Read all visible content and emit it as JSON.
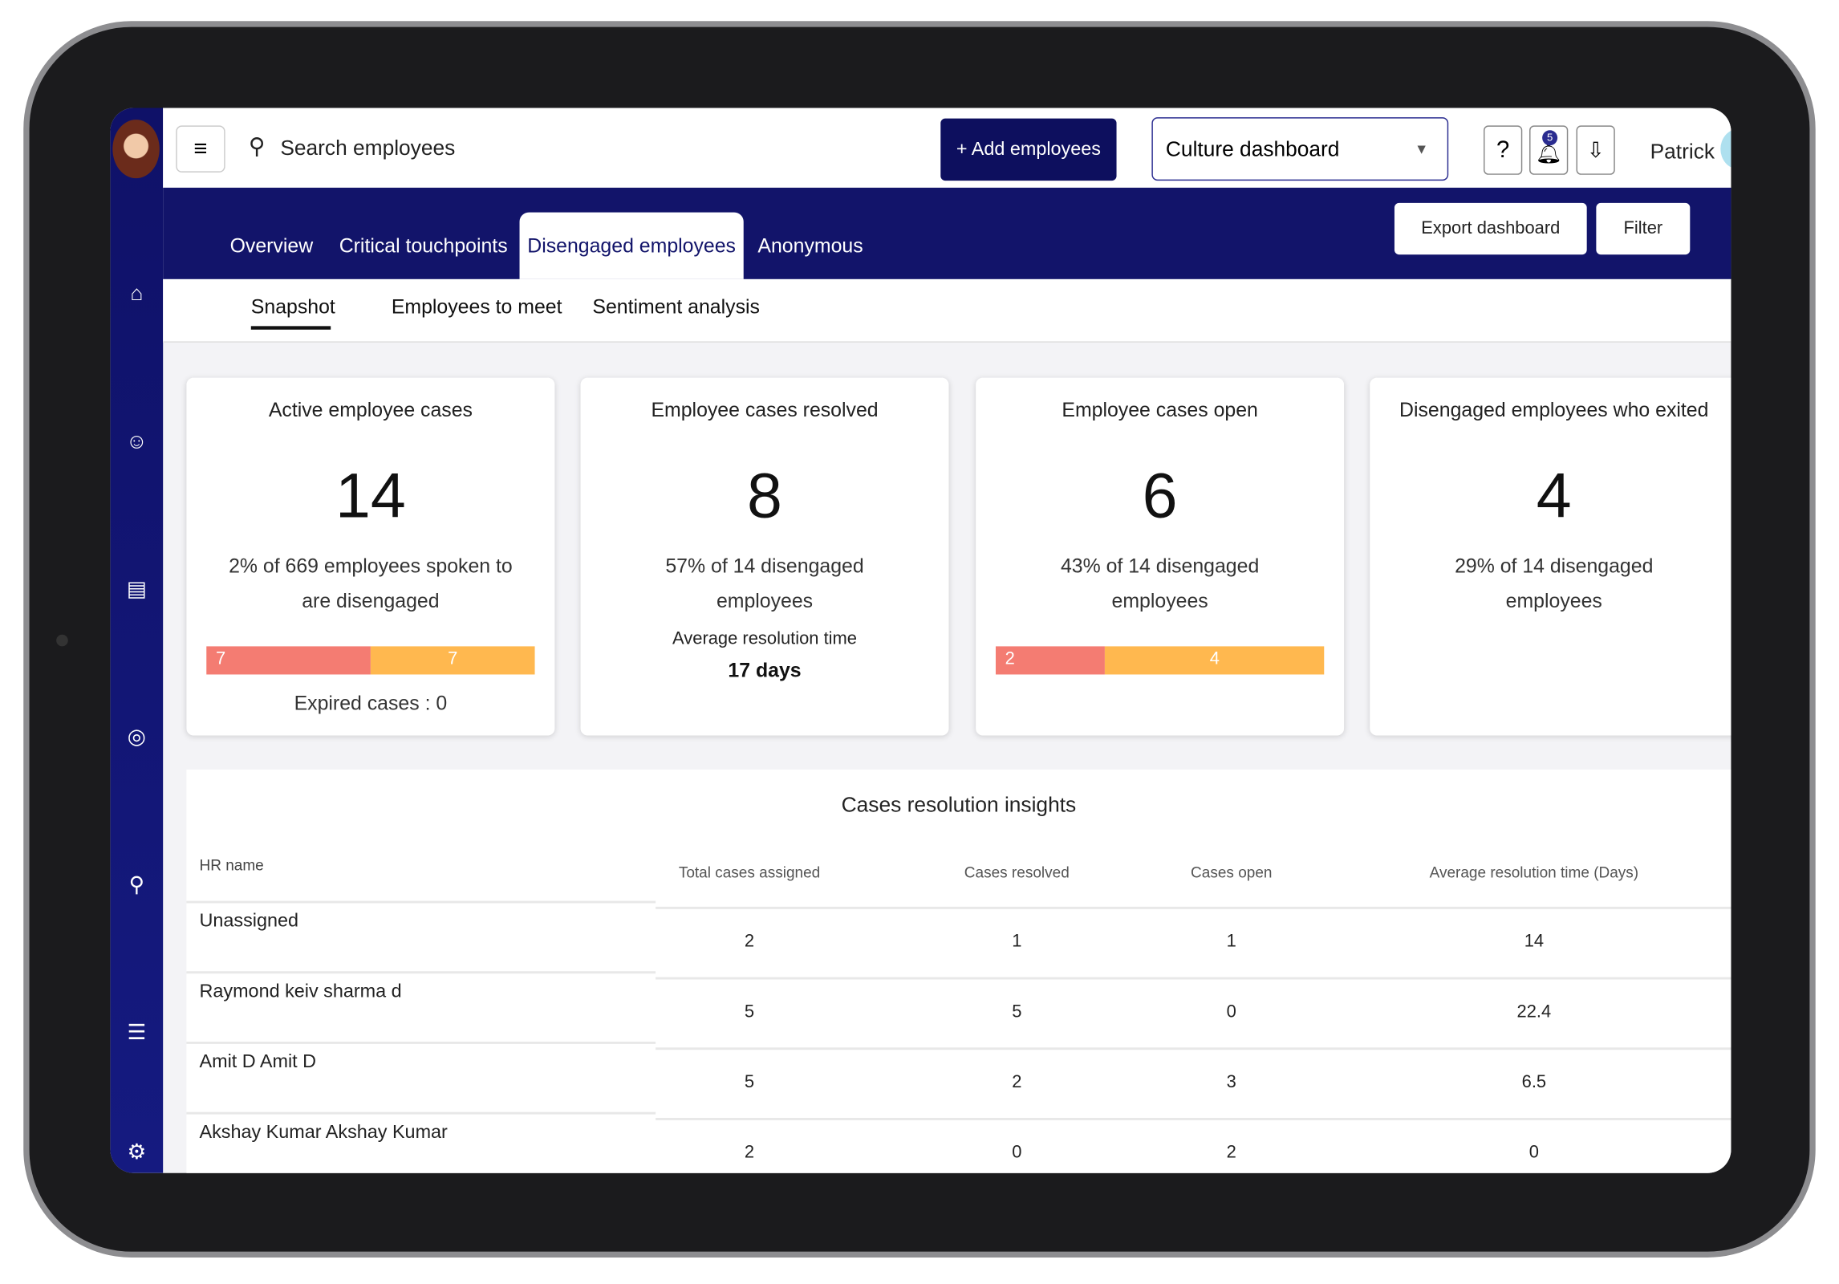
{
  "header": {
    "search_placeholder": "Search employees",
    "add_button": "Add employees",
    "dashboard_select": "Culture dashboard",
    "notification_count": 5,
    "user_name": "Patrick"
  },
  "tabs": [
    "Overview",
    "Critical touchpoints",
    "Disengaged employees",
    "Anonymous"
  ],
  "active_tab": 2,
  "actions": [
    "Export dashboard",
    "Filter"
  ],
  "subtabs": [
    "Snapshot",
    "Employees to meet",
    "Sentiment analysis"
  ],
  "cards": [
    {
      "title": "Active employee cases",
      "value": 14,
      "subtitle": "2% of 669 employees spoken to are disengaged",
      "segments": [
        {
          "value": 7,
          "color": "#f47c72"
        },
        {
          "value": 7,
          "color": "#ffb84f"
        }
      ],
      "footer": "Expired cases : 0"
    },
    {
      "title": "Employee cases resolved",
      "value": 8,
      "subtitle": "57% of 14 disengaged employees",
      "detail_label": "Average resolution time",
      "detail_value": "17 days"
    },
    {
      "title": "Employee cases open",
      "value": 6,
      "subtitle": "43% of 14 disengaged employees",
      "segments": [
        {
          "value": 2,
          "color": "#f47c72"
        },
        {
          "value": 4,
          "color": "#ffb84f"
        }
      ]
    },
    {
      "title": "Disengaged employees who exited",
      "value": 4,
      "subtitle": "29% of 14 disengaged employees"
    }
  ],
  "table": {
    "title": "Cases resolution insights",
    "columns": [
      "HR name",
      "Total cases assigned",
      "Cases resolved",
      "Cases open",
      "Average resolution time (Days)"
    ],
    "rows": [
      [
        "Unassigned",
        2,
        1,
        1,
        14
      ],
      [
        "Raymond keiv sharma d",
        5,
        5,
        0,
        22.4
      ],
      [
        "Amit D Amit D",
        5,
        2,
        3,
        6.5
      ],
      [
        "Akshay Kumar Akshay Kumar",
        2,
        0,
        2,
        0
      ]
    ]
  }
}
